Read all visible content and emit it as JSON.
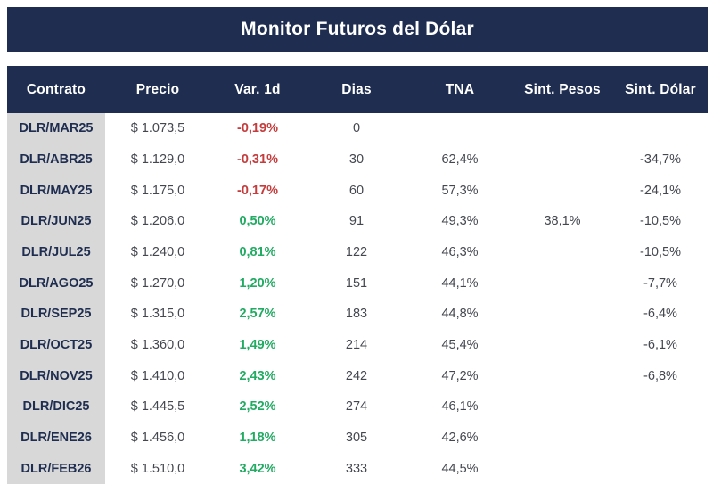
{
  "title": "Monitor Futuros del Dólar",
  "colors": {
    "navy": "#1e2d50",
    "red": "#c43c3c",
    "green": "#22ab63",
    "gray": "#d8d8d8",
    "num": "#44474f"
  },
  "table": {
    "columns": [
      "Contrato",
      "Precio",
      "Var. 1d",
      "Dias",
      "TNA",
      "Sint. Pesos",
      "Sint. Dólar"
    ],
    "rows": [
      {
        "contrato": "DLR/MAR25",
        "precio": "$ 1.073,5",
        "var1d": "-0,19%",
        "dias": "0",
        "tna": "",
        "sint_pesos": "",
        "sint_dolar": ""
      },
      {
        "contrato": "DLR/ABR25",
        "precio": "$ 1.129,0",
        "var1d": "-0,31%",
        "dias": "30",
        "tna": "62,4%",
        "sint_pesos": "",
        "sint_dolar": "-34,7%"
      },
      {
        "contrato": "DLR/MAY25",
        "precio": "$ 1.175,0",
        "var1d": "-0,17%",
        "dias": "60",
        "tna": "57,3%",
        "sint_pesos": "",
        "sint_dolar": "-24,1%"
      },
      {
        "contrato": "DLR/JUN25",
        "precio": "$ 1.206,0",
        "var1d": "0,50%",
        "dias": "91",
        "tna": "49,3%",
        "sint_pesos": "38,1%",
        "sint_dolar": "-10,5%"
      },
      {
        "contrato": "DLR/JUL25",
        "precio": "$ 1.240,0",
        "var1d": "0,81%",
        "dias": "122",
        "tna": "46,3%",
        "sint_pesos": "",
        "sint_dolar": "-10,5%"
      },
      {
        "contrato": "DLR/AGO25",
        "precio": "$ 1.270,0",
        "var1d": "1,20%",
        "dias": "151",
        "tna": "44,1%",
        "sint_pesos": "",
        "sint_dolar": "-7,7%"
      },
      {
        "contrato": "DLR/SEP25",
        "precio": "$ 1.315,0",
        "var1d": "2,57%",
        "dias": "183",
        "tna": "44,8%",
        "sint_pesos": "",
        "sint_dolar": "-6,4%"
      },
      {
        "contrato": "DLR/OCT25",
        "precio": "$ 1.360,0",
        "var1d": "1,49%",
        "dias": "214",
        "tna": "45,4%",
        "sint_pesos": "",
        "sint_dolar": "-6,1%"
      },
      {
        "contrato": "DLR/NOV25",
        "precio": "$ 1.410,0",
        "var1d": "2,43%",
        "dias": "242",
        "tna": "47,2%",
        "sint_pesos": "",
        "sint_dolar": "-6,8%"
      },
      {
        "contrato": "DLR/DIC25",
        "precio": "$ 1.445,5",
        "var1d": "2,52%",
        "dias": "274",
        "tna": "46,1%",
        "sint_pesos": "",
        "sint_dolar": ""
      },
      {
        "contrato": "DLR/ENE26",
        "precio": "$ 1.456,0",
        "var1d": "1,18%",
        "dias": "305",
        "tna": "42,6%",
        "sint_pesos": "",
        "sint_dolar": ""
      },
      {
        "contrato": "DLR/FEB26",
        "precio": "$ 1.510,0",
        "var1d": "3,42%",
        "dias": "333",
        "tna": "44,5%",
        "sint_pesos": "",
        "sint_dolar": ""
      }
    ]
  }
}
